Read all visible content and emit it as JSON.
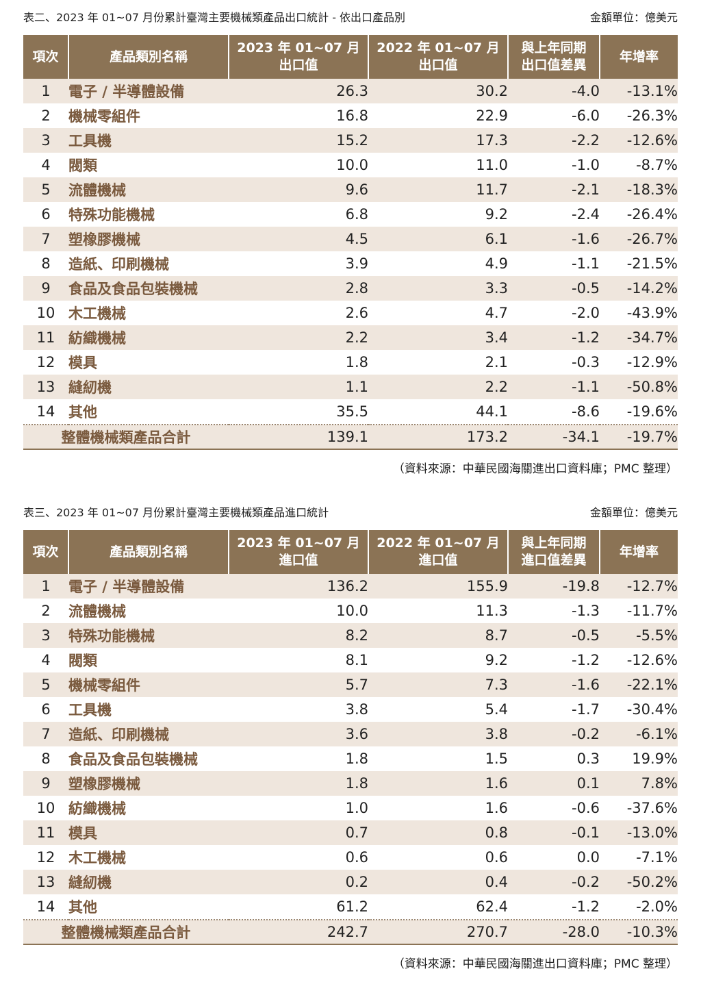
{
  "export_table": {
    "caption": "表二、2023 年 01~07 月份累計臺灣主要機械類產品出口統計 - 依出口產品別",
    "unit": "金額單位：億美元",
    "headers": {
      "index": "項次",
      "name": "產品類別名稱",
      "y2023_line1": "2023 年 01~07 月",
      "y2023_line2": "出口值",
      "y2022_line1": "2022 年 01~07 月",
      "y2022_line2": "出口值",
      "diff_line1": "與上年同期",
      "diff_line2": "出口值差異",
      "growth": "年增率"
    },
    "rows": [
      {
        "no": "1",
        "name": "電子 / 半導體設備",
        "v2023": "26.3",
        "v2022": "30.2",
        "diff": "-4.0",
        "growth": "-13.1%"
      },
      {
        "no": "2",
        "name": "機械零組件",
        "v2023": "16.8",
        "v2022": "22.9",
        "diff": "-6.0",
        "growth": "-26.3%"
      },
      {
        "no": "3",
        "name": "工具機",
        "v2023": "15.2",
        "v2022": "17.3",
        "diff": "-2.2",
        "growth": "-12.6%"
      },
      {
        "no": "4",
        "name": "閥類",
        "v2023": "10.0",
        "v2022": "11.0",
        "diff": "-1.0",
        "growth": "-8.7%"
      },
      {
        "no": "5",
        "name": "流體機械",
        "v2023": "9.6",
        "v2022": "11.7",
        "diff": "-2.1",
        "growth": "-18.3%"
      },
      {
        "no": "6",
        "name": "特殊功能機械",
        "v2023": "6.8",
        "v2022": "9.2",
        "diff": "-2.4",
        "growth": "-26.4%"
      },
      {
        "no": "7",
        "name": "塑橡膠機械",
        "v2023": "4.5",
        "v2022": "6.1",
        "diff": "-1.6",
        "growth": "-26.7%"
      },
      {
        "no": "8",
        "name": "造紙、印刷機械",
        "v2023": "3.9",
        "v2022": "4.9",
        "diff": "-1.1",
        "growth": "-21.5%"
      },
      {
        "no": "9",
        "name": "食品及食品包裝機械",
        "v2023": "2.8",
        "v2022": "3.3",
        "diff": "-0.5",
        "growth": "-14.2%"
      },
      {
        "no": "10",
        "name": "木工機械",
        "v2023": "2.6",
        "v2022": "4.7",
        "diff": "-2.0",
        "growth": "-43.9%"
      },
      {
        "no": "11",
        "name": "紡織機械",
        "v2023": "2.2",
        "v2022": "3.4",
        "diff": "-1.2",
        "growth": "-34.7%"
      },
      {
        "no": "12",
        "name": "模具",
        "v2023": "1.8",
        "v2022": "2.1",
        "diff": "-0.3",
        "growth": "-12.9%"
      },
      {
        "no": "13",
        "name": "縫紉機",
        "v2023": "1.1",
        "v2022": "2.2",
        "diff": "-1.1",
        "growth": "-50.8%"
      },
      {
        "no": "14",
        "name": "其他",
        "v2023": "35.5",
        "v2022": "44.1",
        "diff": "-8.6",
        "growth": "-19.6%"
      }
    ],
    "total": {
      "label": "整體機械類產品合計",
      "v2023": "139.1",
      "v2022": "173.2",
      "diff": "-34.1",
      "growth": "-19.7%"
    },
    "source": "（資料來源：中華民國海關進出口資料庫；PMC 整理）"
  },
  "import_table": {
    "caption": "表三、2023 年 01~07 月份累計臺灣主要機械類產品進口統計",
    "unit": "金額單位：億美元",
    "headers": {
      "index": "項次",
      "name": "產品類別名稱",
      "y2023_line1": "2023 年 01~07 月",
      "y2023_line2": "進口值",
      "y2022_line1": "2022 年 01~07 月",
      "y2022_line2": "進口值",
      "diff_line1": "與上年同期",
      "diff_line2": "進口值差異",
      "growth": "年增率"
    },
    "rows": [
      {
        "no": "1",
        "name": "電子 / 半導體設備",
        "v2023": "136.2",
        "v2022": "155.9",
        "diff": "-19.8",
        "growth": "-12.7%"
      },
      {
        "no": "2",
        "name": "流體機械",
        "v2023": "10.0",
        "v2022": "11.3",
        "diff": "-1.3",
        "growth": "-11.7%"
      },
      {
        "no": "3",
        "name": "特殊功能機械",
        "v2023": "8.2",
        "v2022": "8.7",
        "diff": "-0.5",
        "growth": "-5.5%"
      },
      {
        "no": "4",
        "name": "閥類",
        "v2023": "8.1",
        "v2022": "9.2",
        "diff": "-1.2",
        "growth": "-12.6%"
      },
      {
        "no": "5",
        "name": "機械零組件",
        "v2023": "5.7",
        "v2022": "7.3",
        "diff": "-1.6",
        "growth": "-22.1%"
      },
      {
        "no": "6",
        "name": "工具機",
        "v2023": "3.8",
        "v2022": "5.4",
        "diff": "-1.7",
        "growth": "-30.4%"
      },
      {
        "no": "7",
        "name": "造紙、印刷機械",
        "v2023": "3.6",
        "v2022": "3.8",
        "diff": "-0.2",
        "growth": "-6.1%"
      },
      {
        "no": "8",
        "name": "食品及食品包裝機械",
        "v2023": "1.8",
        "v2022": "1.5",
        "diff": "0.3",
        "growth": "19.9%"
      },
      {
        "no": "9",
        "name": "塑橡膠機械",
        "v2023": "1.8",
        "v2022": "1.6",
        "diff": "0.1",
        "growth": "7.8%"
      },
      {
        "no": "10",
        "name": "紡織機械",
        "v2023": "1.0",
        "v2022": "1.6",
        "diff": "-0.6",
        "growth": "-37.6%"
      },
      {
        "no": "11",
        "name": "模具",
        "v2023": "0.7",
        "v2022": "0.8",
        "diff": "-0.1",
        "growth": "-13.0%"
      },
      {
        "no": "12",
        "name": "木工機械",
        "v2023": "0.6",
        "v2022": "0.6",
        "diff": "0.0",
        "growth": "-7.1%"
      },
      {
        "no": "13",
        "name": "縫紉機",
        "v2023": "0.2",
        "v2022": "0.4",
        "diff": "-0.2",
        "growth": "-50.2%"
      },
      {
        "no": "14",
        "name": "其他",
        "v2023": "61.2",
        "v2022": "62.4",
        "diff": "-1.2",
        "growth": "-2.0%"
      }
    ],
    "total": {
      "label": "整體機械類產品合計",
      "v2023": "242.7",
      "v2022": "270.7",
      "diff": "-28.0",
      "growth": "-10.3%"
    },
    "source": "（資料來源：中華民國海關進出口資料庫；PMC 整理）"
  },
  "colors": {
    "header_bg": "#8b7355",
    "stripe_bg": "#efe6dd",
    "name_text": "#7a5a3e"
  }
}
